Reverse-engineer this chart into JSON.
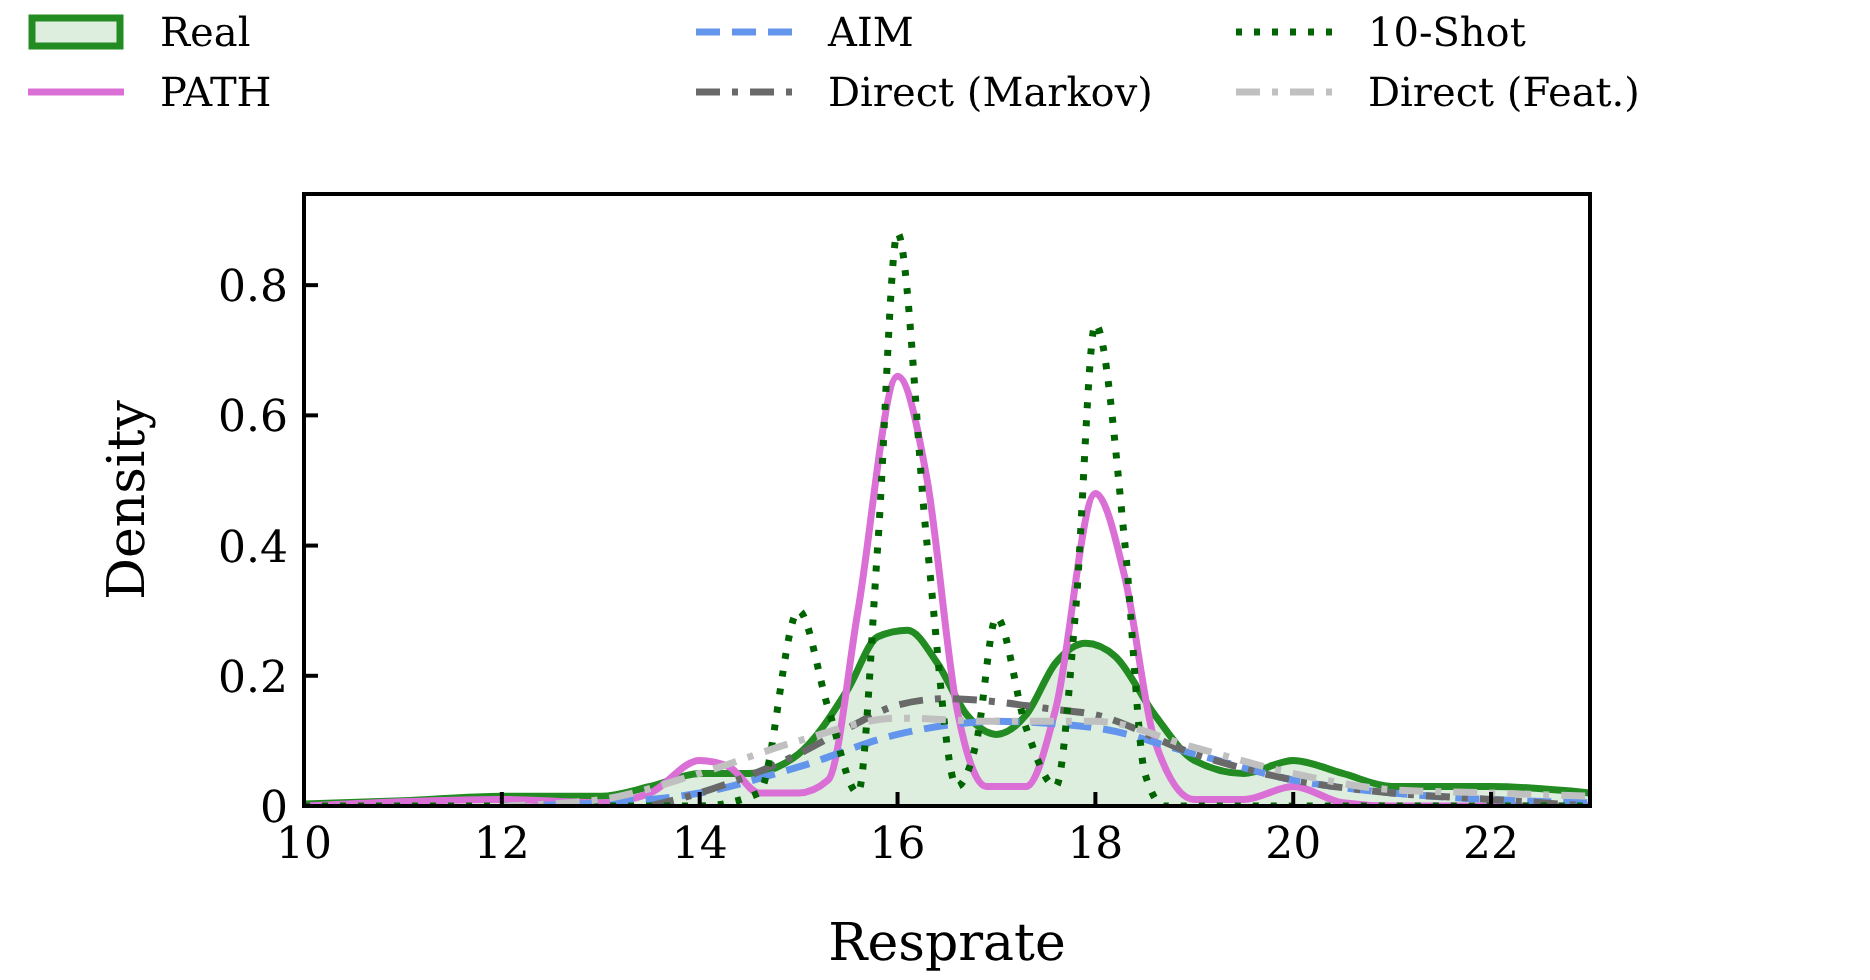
{
  "chart_data": {
    "type": "line",
    "xlabel": "Resprate",
    "ylabel": "Density",
    "xlim": [
      10,
      23
    ],
    "xticks": [
      10,
      12,
      14,
      16,
      18,
      20,
      22
    ],
    "ylim": [
      0,
      0.94
    ],
    "yticks": [
      0,
      0.2,
      0.4,
      0.6,
      0.8
    ],
    "grid": false,
    "legend": "top",
    "marker": "none",
    "series": [
      {
        "name": "Real",
        "type": "area",
        "color": "#228b22",
        "line_style": "solid",
        "x": [
          10,
          11,
          12,
          13,
          13.5,
          14,
          14.5,
          15,
          15.5,
          15.8,
          16.1,
          16.4,
          16.7,
          17,
          17.3,
          17.6,
          17.9,
          18.2,
          18.6,
          19,
          19.5,
          20,
          20.5,
          21,
          22,
          23
        ],
        "values": [
          0.003,
          0.008,
          0.015,
          0.015,
          0.03,
          0.05,
          0.05,
          0.08,
          0.18,
          0.26,
          0.27,
          0.22,
          0.14,
          0.11,
          0.14,
          0.22,
          0.25,
          0.23,
          0.14,
          0.07,
          0.05,
          0.07,
          0.05,
          0.03,
          0.03,
          0.02
        ]
      },
      {
        "name": "PATH",
        "color": "#da70d6",
        "line_style": "solid",
        "x": [
          10,
          12,
          13,
          13.5,
          14,
          14.3,
          14.6,
          15,
          15.3,
          15.6,
          16,
          16.3,
          16.6,
          16.9,
          17.3,
          17.6,
          18,
          18.3,
          18.6,
          19,
          19.5,
          20,
          20.5,
          21,
          23
        ],
        "values": [
          0,
          0.01,
          0.005,
          0.02,
          0.07,
          0.06,
          0.02,
          0.02,
          0.04,
          0.3,
          0.66,
          0.5,
          0.15,
          0.03,
          0.03,
          0.15,
          0.48,
          0.35,
          0.1,
          0.01,
          0.01,
          0.03,
          0.005,
          0,
          0
        ]
      },
      {
        "name": "AIM",
        "color": "#6495ed",
        "line_style": "dashed",
        "x": [
          12,
          13,
          14,
          15,
          16,
          17,
          18,
          19,
          20,
          21,
          22,
          23
        ],
        "values": [
          0,
          0.005,
          0.02,
          0.06,
          0.11,
          0.13,
          0.12,
          0.08,
          0.04,
          0.02,
          0.01,
          0.005
        ]
      },
      {
        "name": "Direct (Markov)",
        "color": "#696969",
        "line_style": "dashdot",
        "x": [
          13.5,
          14,
          15,
          15.5,
          16,
          16.5,
          17,
          17.5,
          18,
          19,
          20,
          21,
          22,
          23
        ],
        "values": [
          0,
          0.02,
          0.08,
          0.12,
          0.155,
          0.165,
          0.16,
          0.15,
          0.14,
          0.08,
          0.04,
          0.02,
          0.01,
          0
        ]
      },
      {
        "name": "10-Shot",
        "color": "#006400",
        "line_style": "dotted",
        "x": [
          10,
          14,
          14.6,
          15,
          15.3,
          15.6,
          15.8,
          16,
          16.3,
          16.6,
          16.8,
          17,
          17.3,
          17.6,
          17.8,
          18,
          18.3,
          18.5,
          18.7,
          23
        ],
        "values": [
          0,
          0,
          0.02,
          0.3,
          0.15,
          0.02,
          0.4,
          0.88,
          0.4,
          0.03,
          0.1,
          0.29,
          0.12,
          0.03,
          0.3,
          0.74,
          0.4,
          0.05,
          0,
          0
        ]
      },
      {
        "name": "Direct (Feat.)",
        "color": "#c0c0c0",
        "line_style": "dashdot",
        "x": [
          12,
          13,
          14,
          15,
          16,
          17,
          18,
          19,
          20,
          21,
          22,
          23
        ],
        "values": [
          0,
          0.01,
          0.05,
          0.1,
          0.135,
          0.13,
          0.13,
          0.09,
          0.05,
          0.025,
          0.02,
          0.015
        ]
      }
    ]
  }
}
